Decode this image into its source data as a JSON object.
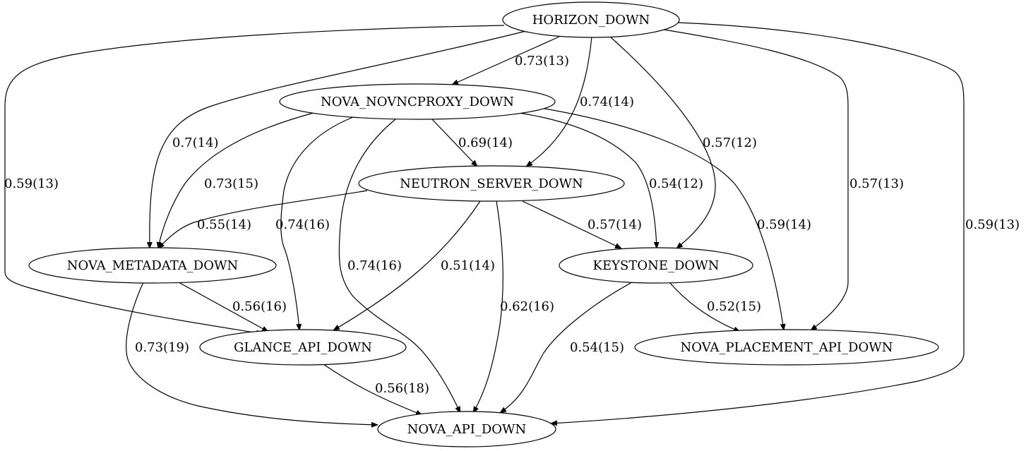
{
  "nodes": {
    "horizon": "HORIZON_DOWN",
    "novnc": "NOVA_NOVNCPROXY_DOWN",
    "neutron": "NEUTRON_SERVER_DOWN",
    "metadata": "NOVA_METADATA_DOWN",
    "keystone": "KEYSTONE_DOWN",
    "glance": "GLANCE_API_DOWN",
    "placement": "NOVA_PLACEMENT_API_DOWN",
    "nova_api": "NOVA_API_DOWN"
  },
  "edges": [
    {
      "from": "horizon",
      "to": "novnc",
      "label": "0.73(13)"
    },
    {
      "from": "horizon",
      "to": "neutron",
      "label": "0.74(14)"
    },
    {
      "from": "horizon",
      "to": "metadata",
      "label": "0.7(14)"
    },
    {
      "from": "horizon",
      "to": "glance",
      "label": "0.59(13)"
    },
    {
      "from": "horizon",
      "to": "keystone",
      "label": "0.57(12)"
    },
    {
      "from": "horizon",
      "to": "placement",
      "label": "0.57(13)"
    },
    {
      "from": "horizon",
      "to": "nova_api",
      "label": "0.59(13)"
    },
    {
      "from": "novnc",
      "to": "neutron",
      "label": "0.69(14)"
    },
    {
      "from": "novnc",
      "to": "metadata",
      "label": "0.73(15)"
    },
    {
      "from": "novnc",
      "to": "glance",
      "label": "0.74(16)"
    },
    {
      "from": "novnc",
      "to": "nova_api",
      "label": "0.74(16)"
    },
    {
      "from": "novnc",
      "to": "keystone",
      "label": "0.54(12)"
    },
    {
      "from": "novnc",
      "to": "placement",
      "label": "0.59(14)"
    },
    {
      "from": "neutron",
      "to": "metadata",
      "label": "0.55(14)"
    },
    {
      "from": "neutron",
      "to": "glance",
      "label": "0.51(14)"
    },
    {
      "from": "neutron",
      "to": "nova_api",
      "label": "0.62(16)"
    },
    {
      "from": "neutron",
      "to": "keystone",
      "label": "0.57(14)"
    },
    {
      "from": "metadata",
      "to": "glance",
      "label": "0.56(16)"
    },
    {
      "from": "metadata",
      "to": "nova_api",
      "label": "0.73(19)"
    },
    {
      "from": "keystone",
      "to": "placement",
      "label": "0.52(15)"
    },
    {
      "from": "keystone",
      "to": "nova_api",
      "label": "0.54(15)"
    },
    {
      "from": "glance",
      "to": "nova_api",
      "label": "0.56(18)"
    }
  ],
  "colors": {
    "background": "#ffffff",
    "stroke": "#000000",
    "text": "#000000"
  }
}
